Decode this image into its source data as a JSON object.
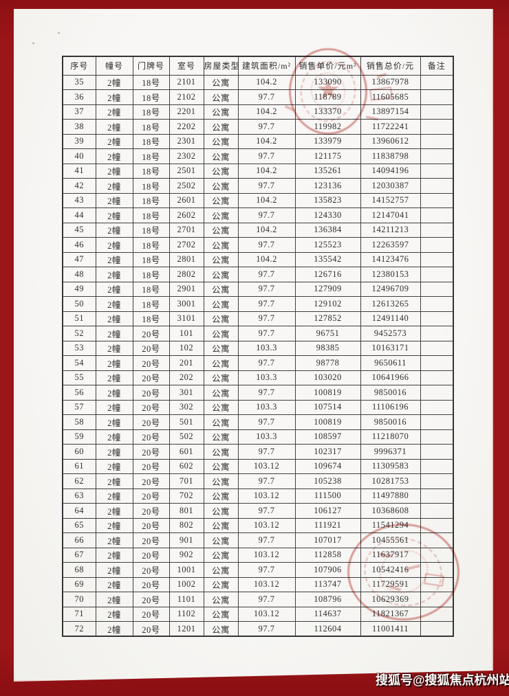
{
  "document": {
    "watermark": "搜狐号@搜狐焦点杭州站",
    "stamp_star": "★"
  },
  "colors": {
    "border_red": "#9c1518",
    "paper": "#f6f5f2",
    "grid_line": "#3f3f3f",
    "stamp_red": "#c14842",
    "text": "#2e2e2e"
  },
  "table": {
    "columns": [
      "序号",
      "幢号",
      "门牌号",
      "室号",
      "房屋类型",
      "建筑面积/m²",
      "销售单价/元m²",
      "销售总价/元",
      "备注"
    ],
    "rows": [
      [
        "35",
        "2幢",
        "18号",
        "2101",
        "公寓",
        "104.2",
        "133090",
        "13867978",
        ""
      ],
      [
        "36",
        "2幢",
        "18号",
        "2102",
        "公寓",
        "97.7",
        "118789",
        "11605685",
        ""
      ],
      [
        "37",
        "2幢",
        "18号",
        "2201",
        "公寓",
        "104.2",
        "133370",
        "13897154",
        ""
      ],
      [
        "38",
        "2幢",
        "18号",
        "2202",
        "公寓",
        "97.7",
        "119982",
        "11722241",
        ""
      ],
      [
        "39",
        "2幢",
        "18号",
        "2301",
        "公寓",
        "104.2",
        "133979",
        "13960612",
        ""
      ],
      [
        "40",
        "2幢",
        "18号",
        "2302",
        "公寓",
        "97.7",
        "121175",
        "11838798",
        ""
      ],
      [
        "41",
        "2幢",
        "18号",
        "2501",
        "公寓",
        "104.2",
        "135261",
        "14094196",
        ""
      ],
      [
        "42",
        "2幢",
        "18号",
        "2502",
        "公寓",
        "97.7",
        "123136",
        "12030387",
        ""
      ],
      [
        "43",
        "2幢",
        "18号",
        "2601",
        "公寓",
        "104.2",
        "135823",
        "14152757",
        ""
      ],
      [
        "44",
        "2幢",
        "18号",
        "2602",
        "公寓",
        "97.7",
        "124330",
        "12147041",
        ""
      ],
      [
        "45",
        "2幢",
        "18号",
        "2701",
        "公寓",
        "104.2",
        "136384",
        "14211213",
        ""
      ],
      [
        "46",
        "2幢",
        "18号",
        "2702",
        "公寓",
        "97.7",
        "125523",
        "12263597",
        ""
      ],
      [
        "47",
        "2幢",
        "18号",
        "2801",
        "公寓",
        "104.2",
        "135542",
        "14123476",
        ""
      ],
      [
        "48",
        "2幢",
        "18号",
        "2802",
        "公寓",
        "97.7",
        "126716",
        "12380153",
        ""
      ],
      [
        "49",
        "2幢",
        "18号",
        "2901",
        "公寓",
        "97.7",
        "127909",
        "12496709",
        ""
      ],
      [
        "50",
        "2幢",
        "18号",
        "3001",
        "公寓",
        "97.7",
        "129102",
        "12613265",
        ""
      ],
      [
        "51",
        "2幢",
        "18号",
        "3101",
        "公寓",
        "97.7",
        "127852",
        "12491140",
        ""
      ],
      [
        "52",
        "2幢",
        "20号",
        "101",
        "公寓",
        "97.7",
        "96751",
        "9452573",
        ""
      ],
      [
        "53",
        "2幢",
        "20号",
        "102",
        "公寓",
        "103.3",
        "98385",
        "10163171",
        ""
      ],
      [
        "54",
        "2幢",
        "20号",
        "201",
        "公寓",
        "97.7",
        "98778",
        "9650611",
        ""
      ],
      [
        "55",
        "2幢",
        "20号",
        "202",
        "公寓",
        "103.3",
        "103020",
        "10641966",
        ""
      ],
      [
        "56",
        "2幢",
        "20号",
        "301",
        "公寓",
        "97.7",
        "100819",
        "9850016",
        ""
      ],
      [
        "57",
        "2幢",
        "20号",
        "302",
        "公寓",
        "103.3",
        "107514",
        "11106196",
        ""
      ],
      [
        "58",
        "2幢",
        "20号",
        "501",
        "公寓",
        "97.7",
        "100819",
        "9850016",
        ""
      ],
      [
        "59",
        "2幢",
        "20号",
        "502",
        "公寓",
        "103.3",
        "108597",
        "11218070",
        ""
      ],
      [
        "60",
        "2幢",
        "20号",
        "601",
        "公寓",
        "97.7",
        "102317",
        "9996371",
        ""
      ],
      [
        "61",
        "2幢",
        "20号",
        "602",
        "公寓",
        "103.12",
        "109674",
        "11309583",
        ""
      ],
      [
        "62",
        "2幢",
        "20号",
        "701",
        "公寓",
        "97.7",
        "105238",
        "10281753",
        ""
      ],
      [
        "63",
        "2幢",
        "20号",
        "702",
        "公寓",
        "103.12",
        "111500",
        "11497880",
        ""
      ],
      [
        "64",
        "2幢",
        "20号",
        "801",
        "公寓",
        "97.7",
        "106127",
        "10368608",
        ""
      ],
      [
        "65",
        "2幢",
        "20号",
        "802",
        "公寓",
        "103.12",
        "111921",
        "11541294",
        ""
      ],
      [
        "66",
        "2幢",
        "20号",
        "901",
        "公寓",
        "97.7",
        "107017",
        "10455561",
        ""
      ],
      [
        "67",
        "2幢",
        "20号",
        "902",
        "公寓",
        "103.12",
        "112858",
        "11637917",
        ""
      ],
      [
        "68",
        "2幢",
        "20号",
        "1001",
        "公寓",
        "97.7",
        "107906",
        "10542416",
        ""
      ],
      [
        "69",
        "2幢",
        "20号",
        "1002",
        "公寓",
        "103.12",
        "113747",
        "11729591",
        ""
      ],
      [
        "70",
        "2幢",
        "20号",
        "1101",
        "公寓",
        "97.7",
        "108796",
        "10629369",
        ""
      ],
      [
        "71",
        "2幢",
        "20号",
        "1102",
        "公寓",
        "103.12",
        "114637",
        "11821367",
        ""
      ],
      [
        "72",
        "2幢",
        "20号",
        "1201",
        "公寓",
        "97.7",
        "112604",
        "11001411",
        ""
      ]
    ]
  }
}
